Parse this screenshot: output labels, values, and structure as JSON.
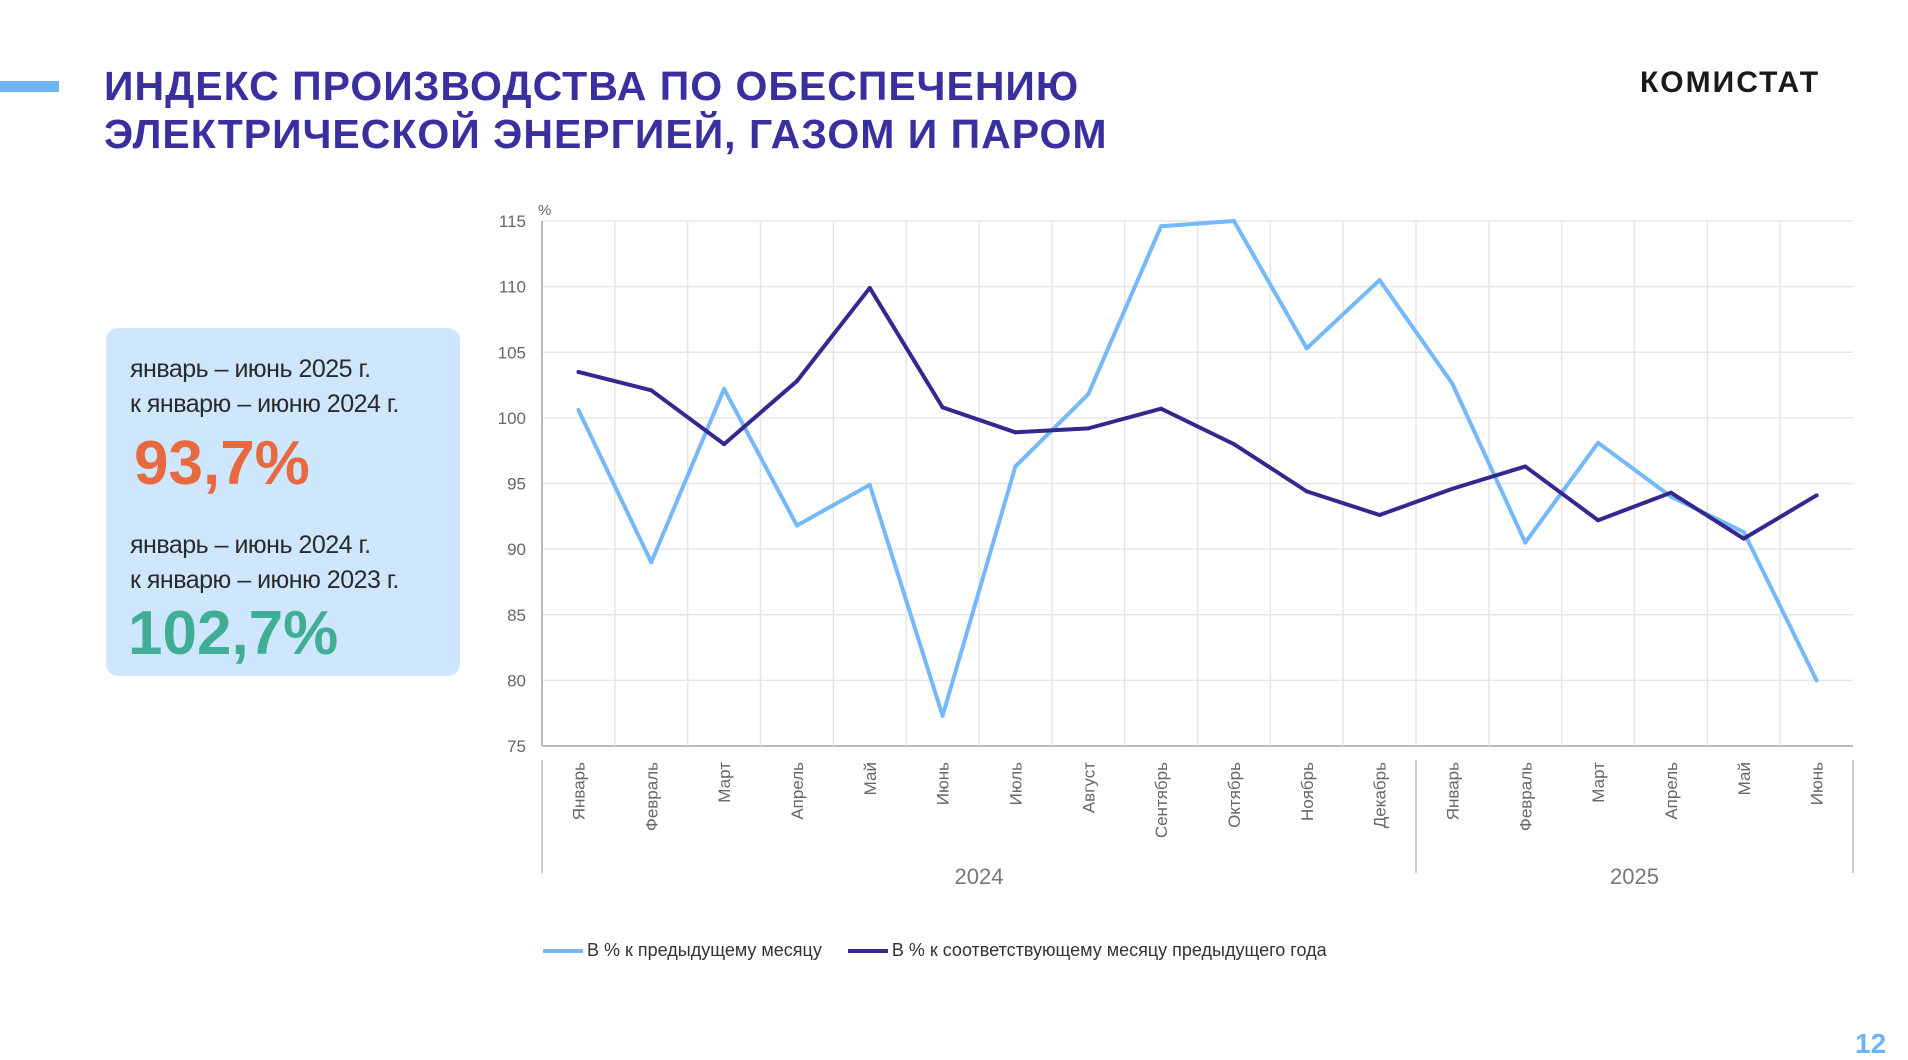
{
  "header": {
    "title_line1": "ИНДЕКС ПРОИЗВОДСТВА  ПО ОБЕСПЕЧЕНИЮ",
    "title_line2": "ЭЛЕКТРИЧЕСКОЙ  ЭНЕРГИЕЙ, ГАЗОМ  И ПАРОМ",
    "logo": "КОМИСТАТ"
  },
  "card": {
    "label1_line1": "январь – июнь 2025 г.",
    "label1_line2": "к январю – июню 2024 г.",
    "value1": "93,7%",
    "label2_line1": "январь – июнь 2024 г.",
    "label2_line2": "к январю – июню 2023 г.",
    "value2": "102,7%",
    "colors": {
      "value1": "#e8693f",
      "value2": "#3fae94",
      "background": "#cfe6ff"
    }
  },
  "page_number": "12",
  "chart_data": {
    "type": "line",
    "ylabel": "%",
    "ylim": [
      75,
      115
    ],
    "yticks": [
      75,
      80,
      85,
      90,
      95,
      100,
      105,
      110,
      115
    ],
    "grid": true,
    "categories": [
      "Январь",
      "Февраль",
      "Март",
      "Апрель",
      "Май",
      "Июнь",
      "Июль",
      "Август",
      "Сентябрь",
      "Октябрь",
      "Ноябрь",
      "Декабрь",
      "Январь",
      "Февраль",
      "Март",
      "Апрель",
      "Май",
      "Июнь"
    ],
    "groups": [
      {
        "label": "2024",
        "count": 12
      },
      {
        "label": "2025",
        "count": 6
      }
    ],
    "legend_position": "bottom",
    "series": [
      {
        "name": "В % к предыдущему месяцу",
        "color": "#74b9fb",
        "values": [
          100.6,
          89.0,
          102.2,
          91.8,
          94.9,
          77.3,
          96.3,
          101.8,
          114.6,
          115.0,
          105.3,
          110.5,
          102.6,
          90.5,
          98.1,
          94.0,
          91.3,
          80.0
        ]
      },
      {
        "name": "В % к соответствующему  месяцу предыдущего года",
        "color": "#34288f",
        "values": [
          103.5,
          102.1,
          98.0,
          102.8,
          109.9,
          100.8,
          98.9,
          99.2,
          100.7,
          98.0,
          94.4,
          92.6,
          94.6,
          96.3,
          92.2,
          94.3,
          90.8,
          94.1
        ]
      }
    ]
  }
}
